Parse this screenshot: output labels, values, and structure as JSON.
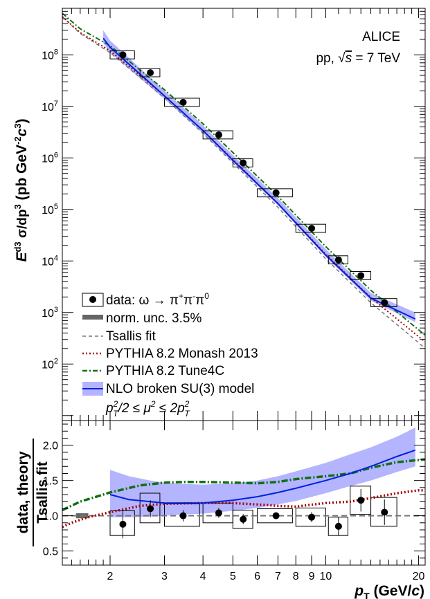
{
  "chart_data": [
    {
      "type": "scatter",
      "panel": "spectrum",
      "y_scale": "log",
      "x_scale": "log",
      "xlim": [
        1.4,
        21
      ],
      "ylim": [
        8,
        800000000
      ],
      "ylabel": {
        "pre": "E",
        "sup1": "3",
        "mid": "σ / dp",
        "sup2": "3",
        "unit": "(pb GeV",
        "unit_sup": "-2",
        "unit_c": "c",
        "unit_csup": "3",
        "close": ")"
      },
      "y_tick_labels": [
        {
          "value": 100,
          "base": "10",
          "exp": "2"
        },
        {
          "value": 1000,
          "base": "10",
          "exp": "3"
        },
        {
          "value": 10000,
          "base": "10",
          "exp": "4"
        },
        {
          "value": 100000,
          "base": "10",
          "exp": "5"
        },
        {
          "value": 1000000,
          "base": "10",
          "exp": "6"
        },
        {
          "value": 10000000,
          "base": "10",
          "exp": "7"
        },
        {
          "value": 100000000,
          "base": "10",
          "exp": "8"
        }
      ],
      "info": {
        "experiment": "ALICE",
        "system_prefix": "pp, ",
        "sqrt_s": "s",
        "system_suffix": " = 7 TeV"
      },
      "data_points": [
        {
          "x": 2.2,
          "y": 100000000,
          "x_lo": 2.0,
          "x_hi": 2.4
        },
        {
          "x": 2.7,
          "y": 45000000,
          "x_lo": 2.5,
          "x_hi": 2.9
        },
        {
          "x": 3.45,
          "y": 12000000,
          "x_lo": 3.0,
          "x_hi": 3.9
        },
        {
          "x": 4.5,
          "y": 2800000,
          "x_lo": 4.0,
          "x_hi": 5.0
        },
        {
          "x": 5.4,
          "y": 800000,
          "x_lo": 5.0,
          "x_hi": 5.8
        },
        {
          "x": 6.9,
          "y": 210000,
          "x_lo": 6.0,
          "x_hi": 7.8
        },
        {
          "x": 9.0,
          "y": 43000,
          "x_lo": 8.0,
          "x_hi": 10.0
        },
        {
          "x": 11.0,
          "y": 10500,
          "x_lo": 10.2,
          "x_hi": 11.8
        },
        {
          "x": 13.0,
          "y": 5200,
          "x_lo": 12.0,
          "x_hi": 14.0
        },
        {
          "x": 15.5,
          "y": 1550,
          "x_lo": 14.0,
          "x_hi": 17.0
        }
      ],
      "tsallis_fit": {
        "x": [
          1.4,
          1.6,
          2.0,
          3.0,
          4.0,
          5.0,
          7.0,
          10.0,
          14.0,
          20.0,
          21.0
        ],
        "y": [
          550000000,
          260000000,
          110000000,
          14500000,
          3000000,
          800000,
          110000,
          11000,
          1550,
          260,
          200
        ]
      },
      "pythia_monash": {
        "x": [
          1.4,
          1.6,
          2.0,
          3.0,
          4.0,
          5.0,
          7.0,
          10.0,
          14.0,
          20.0,
          21.0
        ],
        "y": [
          550000000,
          270000000,
          120000000,
          16000000,
          3400000,
          930000,
          130000,
          13500,
          1950,
          340,
          270
        ]
      },
      "pythia_tune4c": {
        "x": [
          1.4,
          1.6,
          2.0,
          3.0,
          4.0,
          5.0,
          7.0,
          10.0,
          14.0,
          20.0,
          21.0
        ],
        "y": [
          640000000,
          320000000,
          150000000,
          21000000,
          4600000,
          1270000,
          180000,
          19000,
          2700,
          460,
          360
        ]
      },
      "nlo_central": {
        "x": [
          1.9,
          2.0,
          3.0,
          4.0,
          5.0,
          7.0,
          10.0,
          14.0,
          19.5
        ],
        "y": [
          210000000,
          140000000,
          16000000,
          3400000,
          900000,
          130000,
          13000,
          1900,
          750
        ]
      },
      "nlo_band": {
        "x": [
          1.9,
          2.0,
          3.0,
          4.0,
          5.0,
          7.0,
          10.0,
          14.0,
          19.5
        ],
        "lo": [
          170000000,
          110000000,
          14000000,
          3000000,
          820000,
          120000,
          12000,
          1700,
          650
        ],
        "hi": [
          300000000,
          190000000,
          20000000,
          4300000,
          1130000,
          165000,
          17000,
          2400,
          1000
        ]
      },
      "legend": [
        {
          "label": "data: ω → π",
          "sup1": "+",
          "mid": "π",
          "sup2": "-",
          "end": "π",
          "sup3": "0",
          "style": "marker"
        },
        {
          "label": "norm. unc. 3.5%",
          "style": "grey-box"
        },
        {
          "label": "Tsallis fit",
          "style": "grey-dashed",
          "color": "#777777"
        },
        {
          "label": "PYTHIA 8.2 Monash 2013",
          "style": "red-dotted",
          "color": "#a30000"
        },
        {
          "label": "PYTHIA 8.2 Tune4C",
          "style": "green-dashdot",
          "color": "#107010"
        },
        {
          "label": "NLO broken SU(3) model",
          "style": "blue-band",
          "color": "#0020e0",
          "band_color": "#b4b4ff"
        }
      ],
      "mu_range": {
        "p": "p",
        "T": "T",
        "two": "2",
        "slash": "/2 ≤ μ",
        "mu2": "2",
        "le": " ≤ 2p"
      }
    },
    {
      "type": "scatter",
      "panel": "ratio",
      "x_scale": "log",
      "xlim": [
        1.4,
        21
      ],
      "ylim": [
        0.3,
        2.35
      ],
      "ylabel_line1": "data, theory",
      "ylabel_line2": "Tsallis fit",
      "y_ticks": [
        0.5,
        1.0,
        1.5,
        2.0
      ],
      "y_tick_labels": [
        "0.5",
        "1.0",
        "1.5",
        "2.0"
      ],
      "x_ticks": [
        2,
        3,
        4,
        5,
        6,
        7,
        8,
        9,
        10,
        20
      ],
      "x_tick_labels": [
        "2",
        "3",
        "4",
        "5",
        "6",
        "7",
        "8",
        "9",
        "10",
        "20"
      ],
      "xlabel": {
        "p": "p",
        "T": "T",
        "unit": " (GeV/",
        "c": "c",
        "close": ")"
      },
      "norm_unc": {
        "x_lo": 1.55,
        "x_hi": 1.7,
        "y_lo": 0.965,
        "y_hi": 1.035
      },
      "data_points": [
        {
          "x": 2.2,
          "y": 0.88,
          "err": 0.2,
          "x_lo": 2.0,
          "x_hi": 2.4,
          "sys_lo": 0.72,
          "sys_hi": 1.07
        },
        {
          "x": 2.7,
          "y": 1.1,
          "err": 0.12,
          "x_lo": 2.5,
          "x_hi": 2.9,
          "sys_lo": 0.9,
          "sys_hi": 1.32
        },
        {
          "x": 3.45,
          "y": 1.0,
          "err": 0.08,
          "x_lo": 3.0,
          "x_hi": 3.9,
          "sys_lo": 0.85,
          "sys_hi": 1.17
        },
        {
          "x": 4.5,
          "y": 1.04,
          "err": 0.07,
          "x_lo": 4.0,
          "x_hi": 5.0,
          "sys_lo": 0.9,
          "sys_hi": 1.18
        },
        {
          "x": 5.4,
          "y": 0.95,
          "err": 0.07,
          "x_lo": 5.0,
          "x_hi": 5.8,
          "sys_lo": 0.82,
          "sys_hi": 1.08
        },
        {
          "x": 6.9,
          "y": 1.0,
          "err": 0.05,
          "x_lo": 6.0,
          "x_hi": 7.8,
          "sys_lo": 0.9,
          "sys_hi": 1.1
        },
        {
          "x": 9.0,
          "y": 0.98,
          "err": 0.07,
          "x_lo": 8.0,
          "x_hi": 10.0,
          "sys_lo": 0.85,
          "sys_hi": 1.11
        },
        {
          "x": 11.0,
          "y": 0.85,
          "err": 0.13,
          "x_lo": 10.2,
          "x_hi": 11.8,
          "sys_lo": 0.72,
          "sys_hi": 0.98
        },
        {
          "x": 13.0,
          "y": 1.22,
          "err": 0.16,
          "x_lo": 12.0,
          "x_hi": 14.0,
          "sys_lo": 1.02,
          "sys_hi": 1.42
        },
        {
          "x": 15.5,
          "y": 1.05,
          "err": 0.18,
          "x_lo": 14.0,
          "x_hi": 17.0,
          "sys_lo": 0.85,
          "sys_hi": 1.26
        }
      ],
      "tsallis_ratio": {
        "x": [
          1.4,
          21.0
        ],
        "y": [
          1.0,
          1.0
        ]
      },
      "monash_ratio": {
        "x": [
          1.4,
          1.5,
          1.7,
          2.0,
          2.5,
          3.0,
          4.0,
          5.0,
          6.0,
          7.0,
          8.0,
          10.0,
          12.0,
          14.0,
          17.0,
          20.0,
          21.0
        ],
        "y": [
          0.84,
          0.9,
          0.98,
          1.05,
          1.14,
          1.17,
          1.18,
          1.18,
          1.16,
          1.14,
          1.13,
          1.18,
          1.2,
          1.25,
          1.32,
          1.36,
          1.36
        ]
      },
      "tune4c_ratio": {
        "x": [
          1.4,
          1.6,
          2.0,
          2.5,
          3.0,
          3.5,
          4.0,
          5.0,
          6.0,
          7.0,
          8.0,
          10.0,
          12.0,
          14.0,
          17.0,
          21.0
        ],
        "y": [
          1.08,
          1.2,
          1.33,
          1.43,
          1.47,
          1.48,
          1.48,
          1.47,
          1.46,
          1.48,
          1.52,
          1.56,
          1.6,
          1.68,
          1.76,
          1.8
        ]
      },
      "nlo_ratio": {
        "x": [
          2.0,
          2.3,
          2.7,
          3.0,
          3.5,
          4.0,
          5.0,
          6.0,
          7.0,
          8.0,
          10.0,
          12.0,
          14.0,
          17.0,
          19.5
        ],
        "y": [
          1.3,
          1.23,
          1.2,
          1.18,
          1.18,
          1.18,
          1.22,
          1.27,
          1.33,
          1.39,
          1.5,
          1.6,
          1.7,
          1.84,
          1.93
        ]
      },
      "nlo_ratio_band": {
        "x": [
          2.0,
          2.3,
          2.7,
          3.0,
          3.5,
          4.0,
          5.0,
          6.0,
          7.0,
          8.0,
          10.0,
          12.0,
          14.0,
          17.0,
          19.5
        ],
        "lo": [
          0.98,
          0.98,
          0.99,
          1.0,
          1.02,
          1.03,
          1.07,
          1.11,
          1.16,
          1.21,
          1.32,
          1.42,
          1.5,
          1.62,
          1.7
        ],
        "hi": [
          1.65,
          1.56,
          1.5,
          1.47,
          1.45,
          1.44,
          1.46,
          1.5,
          1.56,
          1.63,
          1.75,
          1.87,
          1.97,
          2.12,
          2.25
        ]
      }
    }
  ]
}
